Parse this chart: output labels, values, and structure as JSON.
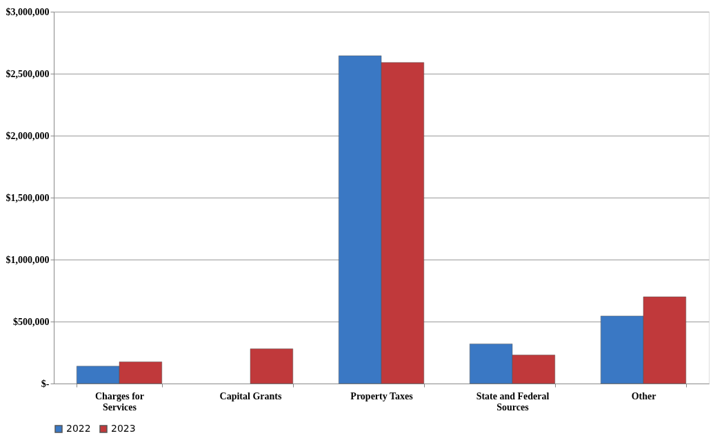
{
  "chart_data": {
    "type": "bar",
    "categories": [
      "Charges for Services",
      "Capital Grants",
      "Property Taxes",
      "State and Federal Sources",
      "Other"
    ],
    "series": [
      {
        "name": "2022",
        "color": "#3a78c4",
        "values": [
          140000,
          null,
          2645000,
          320000,
          545000
        ]
      },
      {
        "name": "2023",
        "color": "#c0393b",
        "values": [
          175000,
          280000,
          2590000,
          230000,
          700000
        ]
      }
    ],
    "ylim": [
      0,
      3000000
    ],
    "yticks": [
      {
        "value": 0,
        "label": "$-"
      },
      {
        "value": 500000,
        "label": "$500,000"
      },
      {
        "value": 1000000,
        "label": "$1,000,000"
      },
      {
        "value": 1500000,
        "label": "$1,500,000"
      },
      {
        "value": 2000000,
        "label": "$2,000,000"
      },
      {
        "value": 2500000,
        "label": "$2,500,000"
      },
      {
        "value": 3000000,
        "label": "$3,000,000"
      }
    ],
    "grid": "y",
    "legend": "bottom"
  }
}
